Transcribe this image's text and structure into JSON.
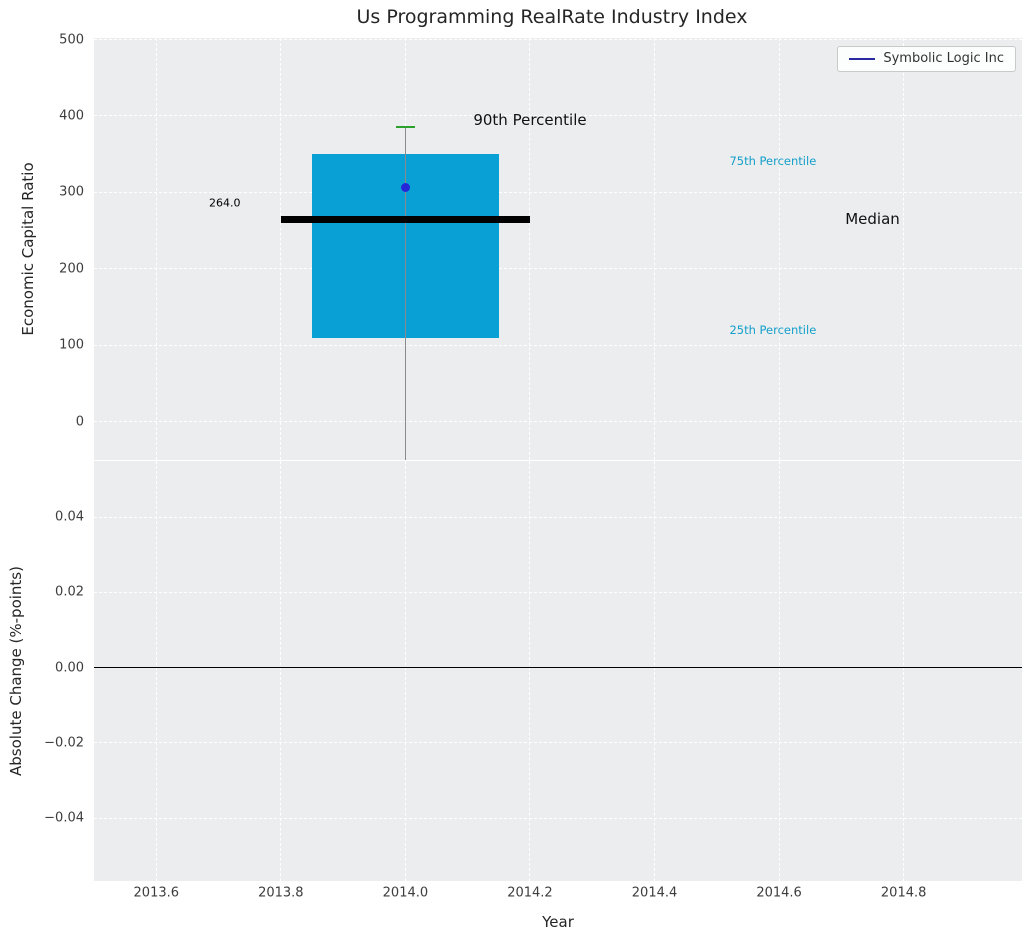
{
  "title": "Us Programming RealRate Industry Index",
  "legend": {
    "label": "Symbolic Logic Inc"
  },
  "colors": {
    "box_fill": "#09a1d5",
    "median_line": "#000000",
    "whisker": "#8a8a8a",
    "cap": "#2ca02c",
    "company_dot": "#2626d9",
    "legend_line": "#2a2aa0",
    "percentile_label": "#149fca",
    "grid": "#ffffff",
    "plot_bg": "#ebedee",
    "tick_text": "#3d3d3d",
    "title_text": "#262626",
    "zero_line": "#000000"
  },
  "chart_data": [
    {
      "type": "box",
      "title": "Us Programming RealRate Industry Index",
      "ylabel": "Economic Capital Ratio",
      "xlim": [
        2013.5,
        2014.99
      ],
      "ylim": [
        -50,
        502
      ],
      "grid": "on, white dashed",
      "legend": [
        "Symbolic Logic Inc"
      ],
      "legend_position": "upper right",
      "yticks": {
        "values": [
          0,
          100,
          200,
          300,
          400,
          500
        ],
        "labels": [
          "0",
          "100",
          "200",
          "300",
          "400",
          "500"
        ]
      },
      "xticks": {
        "values": [
          2013.6,
          2013.8,
          2014.0,
          2014.2,
          2014.4,
          2014.6,
          2014.8
        ],
        "labels": [
          "2013.6",
          "2013.8",
          "2014.0",
          "2014.2",
          "2014.4",
          "2014.6",
          "2014.8"
        ]
      },
      "box": {
        "x": 2014.0,
        "box_halfwidth": 0.15,
        "median_halfwidth": 0.2,
        "cap_halfwidth": 0.015,
        "p25": 110,
        "median": 264.0,
        "p75": 350,
        "p90": 385,
        "whisker_low": -50,
        "company_value": 307
      },
      "annotations": [
        {
          "name": "median-value-label",
          "text": "264.0",
          "x": 2013.71,
          "y": 286,
          "color": "#000000",
          "size": 11
        },
        {
          "name": "p90-percentile-label",
          "text": "90th Percentile",
          "x": 2014.2,
          "y": 395,
          "color": "#111111",
          "size": 15
        },
        {
          "name": "p75-percentile-label",
          "text": "75th Percentile",
          "x": 2014.59,
          "y": 341,
          "color": "#149fca",
          "size": 11.5
        },
        {
          "name": "median-text-label",
          "text": "Median",
          "x": 2014.75,
          "y": 265,
          "color": "#111111",
          "size": 15
        },
        {
          "name": "p25-percentile-label",
          "text": "25th Percentile",
          "x": 2014.59,
          "y": 120,
          "color": "#149fca",
          "size": 11.5
        }
      ]
    },
    {
      "type": "line",
      "ylabel": "Absolute Change (%-points)",
      "xlabel": "Year",
      "xlim": [
        2013.5,
        2014.99
      ],
      "ylim": [
        -0.0567,
        0.0549
      ],
      "grid": "on, white dashed",
      "yticks": {
        "values": [
          0.04,
          0.02,
          0,
          -0.02,
          -0.04
        ],
        "labels": [
          "0.04",
          "0.02",
          "0.00",
          "−0.02",
          "−0.04"
        ]
      },
      "xticks": {
        "values": [
          2013.6,
          2013.8,
          2014.0,
          2014.2,
          2014.4,
          2014.6,
          2014.8
        ],
        "labels": [
          "2013.6",
          "2013.8",
          "2014.0",
          "2014.2",
          "2014.4",
          "2014.6",
          "2014.8"
        ]
      },
      "zero_line": 0.0,
      "series": []
    }
  ]
}
